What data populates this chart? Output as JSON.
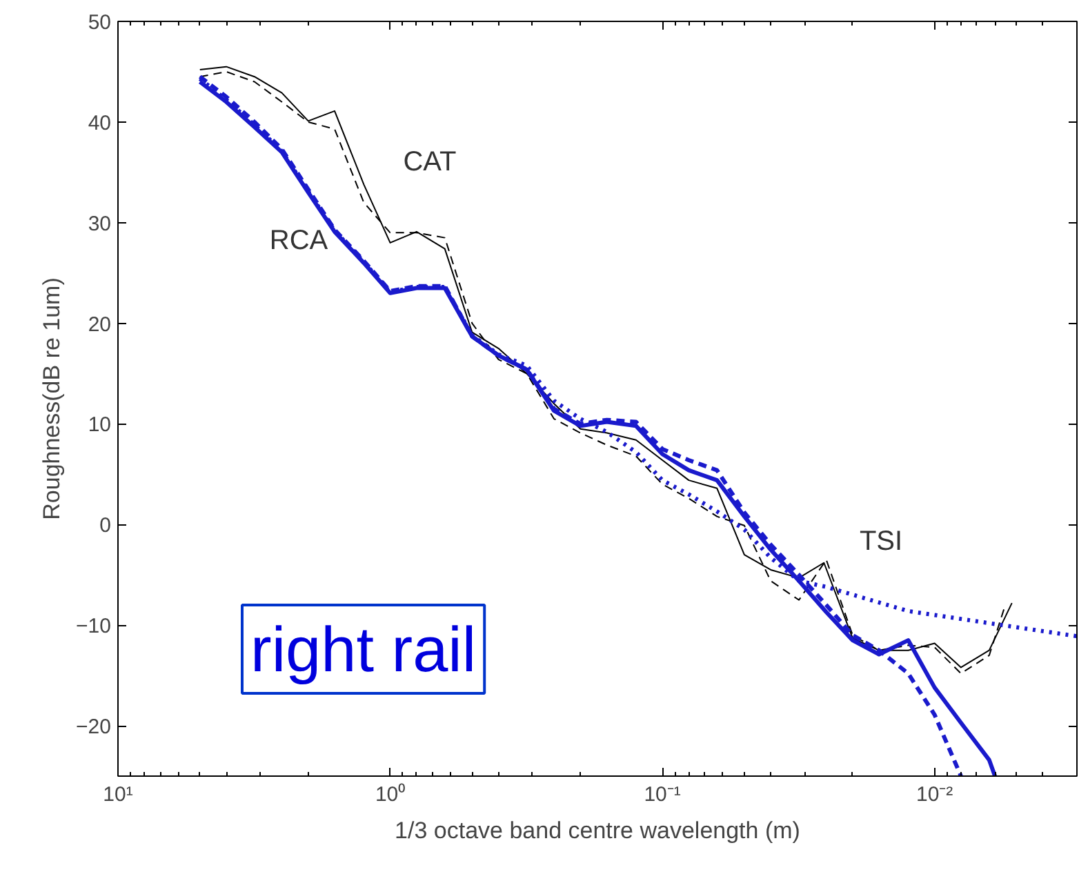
{
  "chart_data": {
    "type": "line",
    "xlabel": "1/3 octave band centre wavelength (m)",
    "ylabel": "Roughness(dB re 1um)",
    "log": "x",
    "grid": false,
    "marker": "none",
    "xlim": [
      10,
      0.003
    ],
    "xticks": [
      {
        "value": 10,
        "label": "10¹"
      },
      {
        "value": 1,
        "label": "10⁰"
      },
      {
        "value": 0.1,
        "label": "10⁻¹"
      },
      {
        "value": 0.01,
        "label": "10⁻²"
      }
    ],
    "ylim": [
      -25,
      50
    ],
    "yticks": [
      -20,
      -10,
      0,
      10,
      20,
      30,
      40,
      50
    ],
    "series": [
      {
        "color": "#000000",
        "line_style": "solid",
        "x": [
          5,
          4,
          3.15,
          2.5,
          2,
          1.6,
          1.25,
          1,
          0.8,
          0.63,
          0.5,
          0.4,
          0.315,
          0.25,
          0.2,
          0.16,
          0.125,
          0.1,
          0.08,
          0.063,
          0.05,
          0.04,
          0.0315,
          0.0255,
          0.02,
          0.016,
          0.0125,
          0.01,
          0.008,
          0.0063,
          0.0052
        ],
        "values": [
          45.2,
          45.5,
          44.5,
          42.9,
          40.1,
          41.1,
          33.8,
          28,
          29.1,
          27.4,
          19.1,
          17.5,
          15,
          12,
          9.5,
          9.1,
          8.4,
          6.4,
          4.4,
          3.6,
          -3,
          -4.5,
          -5.3,
          -3.8,
          -11.3,
          -12.5,
          -12.5,
          -11.8,
          -14.2,
          -12.5,
          -7.8
        ]
      },
      {
        "color": "#000000",
        "line_style": "dashed",
        "x": [
          5,
          4,
          3.15,
          2.5,
          2,
          1.6,
          1.25,
          1,
          0.8,
          0.63,
          0.5,
          0.4,
          0.315,
          0.25,
          0.2,
          0.16,
          0.125,
          0.1,
          0.08,
          0.063,
          0.05,
          0.04,
          0.0315,
          0.025,
          0.02,
          0.016,
          0.0125,
          0.01,
          0.008,
          0.0063,
          0.0055
        ],
        "values": [
          44.5,
          45,
          44,
          42,
          40,
          39.3,
          32,
          29,
          29,
          28.5,
          20,
          16.4,
          15,
          10.5,
          9.1,
          7.9,
          6.8,
          4,
          2.6,
          0.8,
          -0.1,
          -5.6,
          -7.5,
          -3.5,
          -11,
          -12.5,
          -12,
          -12.2,
          -14.8,
          -13,
          -8
        ]
      },
      {
        "color": "#1a1acc",
        "line_style": "solid",
        "x": [
          5,
          4,
          3.15,
          2.5,
          2,
          1.6,
          1.25,
          1,
          0.8,
          0.63,
          0.5,
          0.4,
          0.315,
          0.25,
          0.2,
          0.16,
          0.125,
          0.1,
          0.08,
          0.063,
          0.05,
          0.04,
          0.0315,
          0.025,
          0.02,
          0.016,
          0.0125,
          0.01,
          0.008,
          0.0063,
          0.006
        ],
        "values": [
          44,
          42,
          39.5,
          37,
          33,
          29.1,
          26,
          23,
          23.5,
          23.5,
          18.7,
          16.8,
          15.4,
          11.3,
          9.8,
          10.2,
          9.8,
          7,
          5.4,
          4.4,
          0.8,
          -2.5,
          -5.6,
          -8.7,
          -11.5,
          -12.9,
          -11.5,
          -16.2,
          -19.7,
          -23.4,
          -25
        ]
      },
      {
        "color": "#1a1acc",
        "line_style": "dashed",
        "x": [
          5,
          4,
          3.15,
          2.5,
          2,
          1.6,
          1.25,
          1,
          0.8,
          0.63,
          0.5,
          0.4,
          0.315,
          0.25,
          0.2,
          0.16,
          0.125,
          0.1,
          0.08,
          0.063,
          0.05,
          0.04,
          0.0315,
          0.025,
          0.02,
          0.016,
          0.0125,
          0.01,
          0.008
        ],
        "values": [
          44.5,
          42.5,
          40,
          37.3,
          33.3,
          29.3,
          26.2,
          23.2,
          23.7,
          23.7,
          18.7,
          16.8,
          15.4,
          11.5,
          10,
          10.4,
          10.2,
          7.5,
          6.4,
          5.4,
          1.2,
          -2,
          -5,
          -8,
          -11,
          -12.5,
          -14.8,
          -18.9,
          -25
        ]
      },
      {
        "color": "#1a1acc",
        "line_style": "dotted",
        "x": [
          5,
          4,
          3.15,
          2.5,
          2,
          1.6,
          1.25,
          1,
          0.8,
          0.63,
          0.5,
          0.4,
          0.315,
          0.25,
          0.2,
          0.16,
          0.125,
          0.1,
          0.08,
          0.063,
          0.05,
          0.04,
          0.0315,
          0.025,
          0.0125,
          0.003
        ],
        "values": [
          44.3,
          42.2,
          39.7,
          37.1,
          33.1,
          29.2,
          26.1,
          23.1,
          23.6,
          23.6,
          18.8,
          16.9,
          15.8,
          12.3,
          10.5,
          9.2,
          7.2,
          4.4,
          3,
          1.3,
          -0.5,
          -3.3,
          -5.6,
          -6.2,
          -8.6,
          -11.1
        ]
      }
    ],
    "annotations": [
      "CAT",
      "RCA",
      "TSI",
      "right rail"
    ]
  }
}
